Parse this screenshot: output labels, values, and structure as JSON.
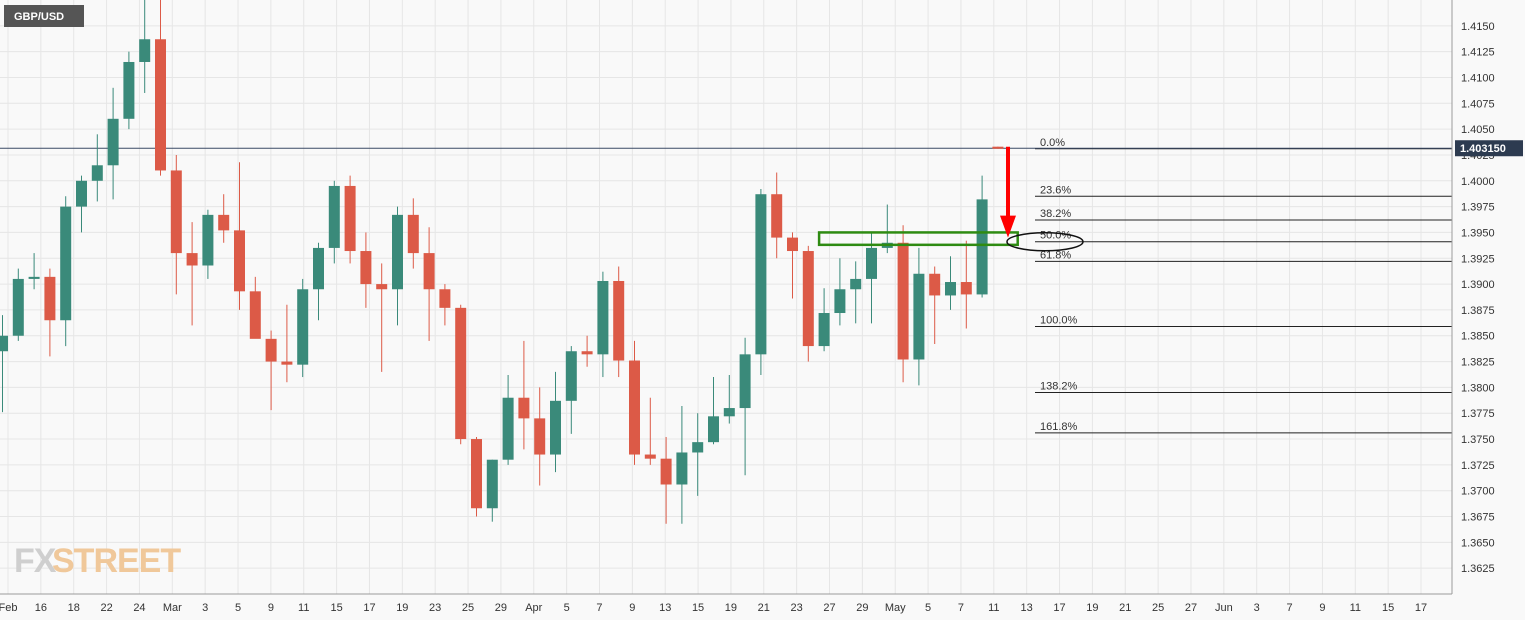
{
  "symbol": "GBP/USD",
  "logo": {
    "part1": "FX",
    "part2": "STREET"
  },
  "colors": {
    "up": "#3a8a7a",
    "down": "#dc5a47",
    "grid": "#e6e6e6",
    "zone": "#2e8b12",
    "arrow": "#ff0000",
    "priceTag": "#2d3b50"
  },
  "chart_data": {
    "type": "candlestick",
    "title": "",
    "ylim": [
      1.36,
      1.4175
    ],
    "y_ticks": [
      "1.4150",
      "1.4125",
      "1.4100",
      "1.4075",
      "1.4050",
      "1.4025",
      "1.4000",
      "1.3975",
      "1.3950",
      "1.3925",
      "1.3900",
      "1.3875",
      "1.3850",
      "1.3825",
      "1.3800",
      "1.3775",
      "1.3750",
      "1.3725",
      "1.3700",
      "1.3675",
      "1.3650",
      "1.3625"
    ],
    "x_labels": [
      "Feb",
      "16",
      "18",
      "22",
      "24",
      "Mar",
      "3",
      "5",
      "9",
      "11",
      "15",
      "17",
      "19",
      "23",
      "25",
      "29",
      "Apr",
      "5",
      "7",
      "9",
      "13",
      "15",
      "19",
      "21",
      "23",
      "27",
      "29",
      "May",
      "5",
      "7",
      "11",
      "13",
      "17",
      "19",
      "21",
      "25",
      "27",
      "Jun",
      "3",
      "7",
      "9",
      "11",
      "15",
      "17"
    ],
    "candles": [
      {
        "o": 1.3835,
        "h": 1.387,
        "l": 1.3776,
        "c": 1.385
      },
      {
        "o": 1.385,
        "h": 1.3915,
        "l": 1.3845,
        "c": 1.3905
      },
      {
        "o": 1.3905,
        "h": 1.393,
        "l": 1.3895,
        "c": 1.3907
      },
      {
        "o": 1.3907,
        "h": 1.3915,
        "l": 1.383,
        "c": 1.3865
      },
      {
        "o": 1.3865,
        "h": 1.3985,
        "l": 1.384,
        "c": 1.3975
      },
      {
        "o": 1.3975,
        "h": 1.4005,
        "l": 1.395,
        "c": 1.4
      },
      {
        "o": 1.4,
        "h": 1.4045,
        "l": 1.398,
        "c": 1.4015
      },
      {
        "o": 1.4015,
        "h": 1.409,
        "l": 1.3982,
        "c": 1.406
      },
      {
        "o": 1.406,
        "h": 1.4125,
        "l": 1.405,
        "c": 1.4115
      },
      {
        "o": 1.4115,
        "h": 1.4175,
        "l": 1.4085,
        "c": 1.4137
      },
      {
        "o": 1.4137,
        "h": 1.4175,
        "l": 1.4005,
        "c": 1.401
      },
      {
        "o": 1.401,
        "h": 1.4025,
        "l": 1.389,
        "c": 1.393
      },
      {
        "o": 1.393,
        "h": 1.396,
        "l": 1.386,
        "c": 1.3918
      },
      {
        "o": 1.3918,
        "h": 1.3972,
        "l": 1.3905,
        "c": 1.3967
      },
      {
        "o": 1.3967,
        "h": 1.3987,
        "l": 1.394,
        "c": 1.3952
      },
      {
        "o": 1.3952,
        "h": 1.4018,
        "l": 1.3875,
        "c": 1.3893
      },
      {
        "o": 1.3893,
        "h": 1.3907,
        "l": 1.385,
        "c": 1.3847
      },
      {
        "o": 1.3847,
        "h": 1.3855,
        "l": 1.3778,
        "c": 1.3825
      },
      {
        "o": 1.3825,
        "h": 1.388,
        "l": 1.3805,
        "c": 1.3822
      },
      {
        "o": 1.3822,
        "h": 1.3905,
        "l": 1.381,
        "c": 1.3895
      },
      {
        "o": 1.3895,
        "h": 1.394,
        "l": 1.3865,
        "c": 1.3935
      },
      {
        "o": 1.3935,
        "h": 1.4,
        "l": 1.392,
        "c": 1.3995
      },
      {
        "o": 1.3995,
        "h": 1.4005,
        "l": 1.392,
        "c": 1.3932
      },
      {
        "o": 1.3932,
        "h": 1.395,
        "l": 1.3877,
        "c": 1.39
      },
      {
        "o": 1.39,
        "h": 1.392,
        "l": 1.3815,
        "c": 1.3895
      },
      {
        "o": 1.3895,
        "h": 1.3975,
        "l": 1.386,
        "c": 1.3967
      },
      {
        "o": 1.3967,
        "h": 1.3983,
        "l": 1.3915,
        "c": 1.393
      },
      {
        "o": 1.393,
        "h": 1.3955,
        "l": 1.3845,
        "c": 1.3895
      },
      {
        "o": 1.3895,
        "h": 1.39,
        "l": 1.386,
        "c": 1.3877
      },
      {
        "o": 1.3877,
        "h": 1.388,
        "l": 1.3745,
        "c": 1.375
      },
      {
        "o": 1.375,
        "h": 1.3752,
        "l": 1.3675,
        "c": 1.3683
      },
      {
        "o": 1.3683,
        "h": 1.373,
        "l": 1.367,
        "c": 1.373
      },
      {
        "o": 1.373,
        "h": 1.3812,
        "l": 1.3725,
        "c": 1.379
      },
      {
        "o": 1.379,
        "h": 1.3845,
        "l": 1.374,
        "c": 1.377
      },
      {
        "o": 1.377,
        "h": 1.38,
        "l": 1.3705,
        "c": 1.3735
      },
      {
        "o": 1.3735,
        "h": 1.3815,
        "l": 1.3718,
        "c": 1.3787
      },
      {
        "o": 1.3787,
        "h": 1.384,
        "l": 1.3755,
        "c": 1.3835
      },
      {
        "o": 1.3835,
        "h": 1.385,
        "l": 1.382,
        "c": 1.3832
      },
      {
        "o": 1.3832,
        "h": 1.3912,
        "l": 1.381,
        "c": 1.3903
      },
      {
        "o": 1.3903,
        "h": 1.3917,
        "l": 1.381,
        "c": 1.3826
      },
      {
        "o": 1.3826,
        "h": 1.3845,
        "l": 1.3725,
        "c": 1.3735
      },
      {
        "o": 1.3735,
        "h": 1.379,
        "l": 1.3725,
        "c": 1.3731
      },
      {
        "o": 1.3731,
        "h": 1.3752,
        "l": 1.3668,
        "c": 1.3706
      },
      {
        "o": 1.3706,
        "h": 1.3782,
        "l": 1.3668,
        "c": 1.3737
      },
      {
        "o": 1.3737,
        "h": 1.3775,
        "l": 1.3695,
        "c": 1.3747
      },
      {
        "o": 1.3747,
        "h": 1.381,
        "l": 1.3745,
        "c": 1.3772
      },
      {
        "o": 1.3772,
        "h": 1.3812,
        "l": 1.3765,
        "c": 1.378
      },
      {
        "o": 1.378,
        "h": 1.3848,
        "l": 1.3715,
        "c": 1.3832
      },
      {
        "o": 1.3832,
        "h": 1.3992,
        "l": 1.3812,
        "c": 1.3987
      },
      {
        "o": 1.3987,
        "h": 1.4008,
        "l": 1.3925,
        "c": 1.3945
      },
      {
        "o": 1.3945,
        "h": 1.395,
        "l": 1.3886,
        "c": 1.3932
      },
      {
        "o": 1.3932,
        "h": 1.3937,
        "l": 1.3825,
        "c": 1.384
      },
      {
        "o": 1.384,
        "h": 1.3896,
        "l": 1.3835,
        "c": 1.3872
      },
      {
        "o": 1.3872,
        "h": 1.3925,
        "l": 1.386,
        "c": 1.3895
      },
      {
        "o": 1.3895,
        "h": 1.3922,
        "l": 1.3862,
        "c": 1.3905
      },
      {
        "o": 1.3905,
        "h": 1.395,
        "l": 1.3862,
        "c": 1.3935
      },
      {
        "o": 1.3935,
        "h": 1.3977,
        "l": 1.393,
        "c": 1.394
      },
      {
        "o": 1.394,
        "h": 1.3957,
        "l": 1.3805,
        "c": 1.3827
      },
      {
        "o": 1.3827,
        "h": 1.3935,
        "l": 1.3802,
        "c": 1.391
      },
      {
        "o": 1.391,
        "h": 1.3917,
        "l": 1.3842,
        "c": 1.3889
      },
      {
        "o": 1.3889,
        "h": 1.3927,
        "l": 1.3875,
        "c": 1.3902
      },
      {
        "o": 1.3902,
        "h": 1.3942,
        "l": 1.3857,
        "c": 1.389
      },
      {
        "o": 1.389,
        "h": 1.4005,
        "l": 1.3887,
        "c": 1.3982
      },
      {
        "o": 1.4033,
        "h": 1.4033,
        "l": 1.4031,
        "c": 1.4031
      }
    ],
    "fibonacci": [
      {
        "label": "0.0%",
        "value": 1.4031
      },
      {
        "label": "23.6%",
        "value": 1.3985
      },
      {
        "label": "38.2%",
        "value": 1.3962
      },
      {
        "label": "50.0%",
        "value": 1.3941
      },
      {
        "label": "61.8%",
        "value": 1.3922
      },
      {
        "label": "100.0%",
        "value": 1.3859
      },
      {
        "label": "138.2%",
        "value": 1.3795
      },
      {
        "label": "161.8%",
        "value": 1.3756
      }
    ],
    "current_price": {
      "label": "1.403150",
      "value": 1.40315
    },
    "zone": {
      "start_candle": 52,
      "end_candle": 64,
      "top": 1.395,
      "bottom": 1.3938
    },
    "arrow": {
      "from": 1.4033,
      "to": 1.3945
    }
  }
}
